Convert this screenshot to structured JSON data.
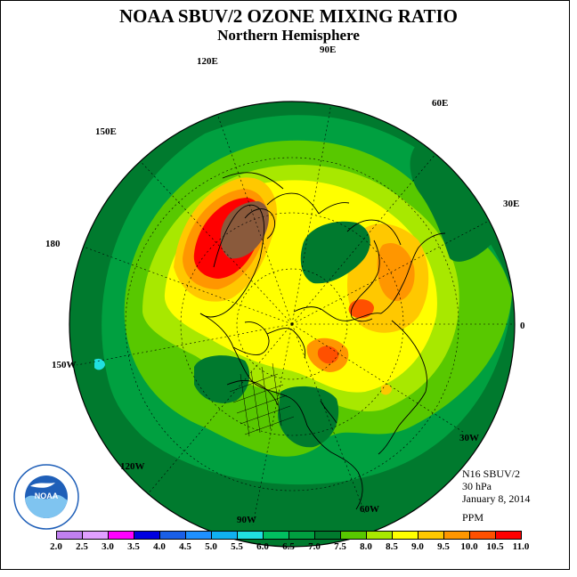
{
  "header": {
    "title": "NOAA SBUV/2 OZONE MIXING RATIO",
    "subtitle": "Northern Hemisphere"
  },
  "longitude_labels": [
    "90E",
    "60E",
    "30E",
    "0",
    "30W",
    "60W",
    "90W",
    "120W",
    "150W",
    "180",
    "150E",
    "120E"
  ],
  "info": {
    "instrument": "N16 SBUV/2",
    "pressure": "30 hPa",
    "date": "January 8, 2014",
    "units": "PPM"
  },
  "logo": {
    "text": "NOAA"
  },
  "colorbar": {
    "ticks": [
      "2.0",
      "2.5",
      "3.0",
      "3.5",
      "4.0",
      "4.5",
      "5.0",
      "5.5",
      "6.0",
      "6.5",
      "7.0",
      "7.5",
      "8.0",
      "8.5",
      "9.0",
      "9.5",
      "10.0",
      "10.5",
      "11.0"
    ],
    "colors": [
      "#c080f0",
      "#e0a0ff",
      "#ff00ff",
      "#0000e0",
      "#1a5fe6",
      "#1e90ff",
      "#10b0f0",
      "#20e0e0",
      "#00c060",
      "#00a040",
      "#007a2e",
      "#58c800",
      "#a8e800",
      "#ffff00",
      "#ffc800",
      "#ff9600",
      "#ff5000",
      "#ff0000",
      "#8a5a3c"
    ]
  },
  "map_colors": {
    "dark_green": "#007a2e",
    "medium_green": "#00a040",
    "light_green": "#58c800",
    "yellow_green": "#a8e800",
    "yellow": "#ffff00",
    "orange": "#ffc800",
    "dark_orange": "#ff9600",
    "red_orange": "#ff5000",
    "red": "#ff0000",
    "brown": "#8a5a3c",
    "cyan": "#20e0e0"
  }
}
